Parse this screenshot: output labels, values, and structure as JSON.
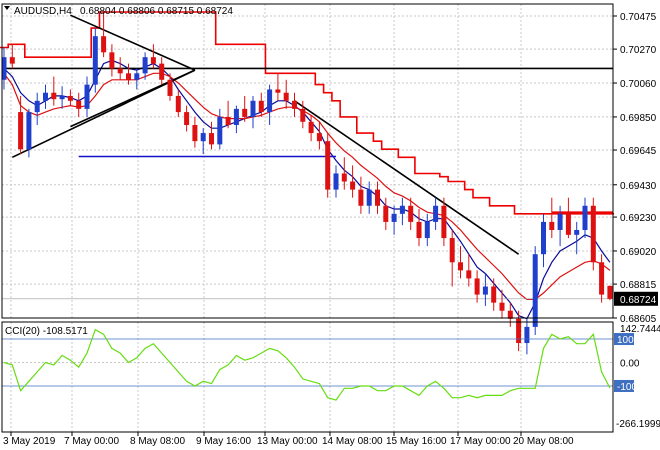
{
  "header": {
    "symbol_label": "AUDUSD,H4",
    "ohlc": "0.68804 0.68806 0.68715 0.68724"
  },
  "indicator": {
    "label": "CCI(20) -108.5171",
    "scale_top": "142.7444",
    "scale_bottom": "-266.1999",
    "level_labels": [
      "100",
      "0.00",
      "-100"
    ]
  },
  "price_axis": {
    "labels": [
      "0.70475",
      "0.70270",
      "0.70060",
      "0.69850",
      "0.69645",
      "0.69430",
      "0.69230",
      "0.69020",
      "0.68815",
      "0.68605"
    ],
    "current_price": "0.68724"
  },
  "time_axis": {
    "labels": [
      "3 May 2019",
      "7 May 00:00",
      "8 May 08:00",
      "9 May 16:00",
      "13 May 00:00",
      "14 May 08:00",
      "15 May 16:00",
      "17 May 00:00",
      "20 May 08:00"
    ]
  },
  "colors": {
    "bull_candle": "#1f3fcc",
    "bear_candle": "#dd1111",
    "cci_line": "#66dd11",
    "upper_band": "#ee0000",
    "fast_ma": "#0a0a99",
    "horizontal_support": "#1111cc",
    "grid": "#c8c8c8",
    "level_line": "#3f6fc0"
  },
  "chart_data": {
    "type": "candlestick",
    "price_range": [
      0.68605,
      0.70475
    ],
    "indicator_range": [
      -266.1999,
      142.7444
    ],
    "candles": [
      [
        0.7008,
        0.7028,
        0.7002,
        0.7022
      ],
      [
        0.7022,
        0.703,
        0.7015,
        0.7018
      ],
      [
        0.6988,
        0.6998,
        0.6962,
        0.6965
      ],
      [
        0.6965,
        0.699,
        0.696,
        0.6988
      ],
      [
        0.6988,
        0.7,
        0.698,
        0.6995
      ],
      [
        0.6995,
        0.7005,
        0.699,
        0.7
      ],
      [
        0.7,
        0.701,
        0.6992,
        0.6996
      ],
      [
        0.6996,
        0.7004,
        0.699,
        0.6998
      ],
      [
        0.6998,
        0.7002,
        0.6992,
        0.6995
      ],
      [
        0.6995,
        0.7,
        0.6985,
        0.699
      ],
      [
        0.699,
        0.701,
        0.6985,
        0.7005
      ],
      [
        0.7005,
        0.704,
        0.7,
        0.7035
      ],
      [
        0.7035,
        0.705,
        0.7022,
        0.7025
      ],
      [
        0.7025,
        0.703,
        0.701,
        0.7015
      ],
      [
        0.7015,
        0.7022,
        0.7008,
        0.7012
      ],
      [
        0.7012,
        0.7018,
        0.7005,
        0.7008
      ],
      [
        0.7008,
        0.7015,
        0.7002,
        0.7012
      ],
      [
        0.7012,
        0.7025,
        0.7008,
        0.7022
      ],
      [
        0.7022,
        0.703,
        0.7015,
        0.7018
      ],
      [
        0.7018,
        0.7022,
        0.7005,
        0.7008
      ],
      [
        0.7008,
        0.7012,
        0.6995,
        0.6998
      ],
      [
        0.6998,
        0.7002,
        0.6985,
        0.6988
      ],
      [
        0.6988,
        0.6992,
        0.6976,
        0.698
      ],
      [
        0.698,
        0.6985,
        0.6966,
        0.697
      ],
      [
        0.697,
        0.6978,
        0.6962,
        0.6975
      ],
      [
        0.6975,
        0.6982,
        0.6965,
        0.6968
      ],
      [
        0.6968,
        0.699,
        0.6965,
        0.6985
      ],
      [
        0.6985,
        0.6995,
        0.6978,
        0.698
      ],
      [
        0.698,
        0.6992,
        0.6975,
        0.699
      ],
      [
        0.699,
        0.6998,
        0.6982,
        0.6985
      ],
      [
        0.6985,
        0.6998,
        0.6978,
        0.6995
      ],
      [
        0.6995,
        0.7,
        0.6985,
        0.6988
      ],
      [
        0.6988,
        0.7005,
        0.698,
        0.7002
      ],
      [
        0.7002,
        0.7012,
        0.6995,
        0.7
      ],
      [
        0.7,
        0.7008,
        0.699,
        0.6995
      ],
      [
        0.6995,
        0.7,
        0.6985,
        0.699
      ],
      [
        0.699,
        0.6995,
        0.6978,
        0.6982
      ],
      [
        0.6982,
        0.6986,
        0.697,
        0.6975
      ],
      [
        0.6975,
        0.6982,
        0.6965,
        0.697
      ],
      [
        0.697,
        0.6975,
        0.6935,
        0.694
      ],
      [
        0.694,
        0.6955,
        0.6935,
        0.695
      ],
      [
        0.695,
        0.696,
        0.694,
        0.6945
      ],
      [
        0.6945,
        0.6955,
        0.6935,
        0.694
      ],
      [
        0.694,
        0.6948,
        0.6925,
        0.693
      ],
      [
        0.693,
        0.6945,
        0.6925,
        0.694
      ],
      [
        0.694,
        0.6945,
        0.6925,
        0.693
      ],
      [
        0.693,
        0.6935,
        0.6915,
        0.692
      ],
      [
        0.692,
        0.693,
        0.6912,
        0.6925
      ],
      [
        0.6925,
        0.6935,
        0.6918,
        0.693
      ],
      [
        0.693,
        0.6935,
        0.6915,
        0.692
      ],
      [
        0.692,
        0.6928,
        0.6905,
        0.691
      ],
      [
        0.691,
        0.6925,
        0.6905,
        0.692
      ],
      [
        0.692,
        0.6935,
        0.6915,
        0.693
      ],
      [
        0.693,
        0.6935,
        0.6905,
        0.691
      ],
      [
        0.691,
        0.6915,
        0.688,
        0.6895
      ],
      [
        0.6895,
        0.6905,
        0.6885,
        0.689
      ],
      [
        0.689,
        0.69,
        0.688,
        0.6885
      ],
      [
        0.6885,
        0.689,
        0.687,
        0.6875
      ],
      [
        0.6875,
        0.6888,
        0.6868,
        0.688
      ],
      [
        0.688,
        0.6885,
        0.6865,
        0.687
      ],
      [
        0.687,
        0.6878,
        0.686,
        0.6865
      ],
      [
        0.6865,
        0.687,
        0.6855,
        0.686
      ],
      [
        0.686,
        0.6865,
        0.684,
        0.6845
      ],
      [
        0.6845,
        0.686,
        0.6838,
        0.6855
      ],
      [
        0.6855,
        0.6905,
        0.685,
        0.69
      ],
      [
        0.69,
        0.6925,
        0.6892,
        0.692
      ],
      [
        0.692,
        0.6935,
        0.691,
        0.6915
      ],
      [
        0.6915,
        0.693,
        0.6905,
        0.6925
      ],
      [
        0.6925,
        0.6935,
        0.691,
        0.6912
      ],
      [
        0.6912,
        0.692,
        0.69,
        0.6915
      ],
      [
        0.6915,
        0.6935,
        0.691,
        0.693
      ],
      [
        0.693,
        0.6935,
        0.689,
        0.6895
      ],
      [
        0.6895,
        0.69,
        0.687,
        0.6875
      ],
      [
        0.68804,
        0.68806,
        0.68715,
        0.68724
      ]
    ],
    "upper_band": [
      0.7028,
      0.703,
      0.703,
      0.7022,
      0.7022,
      0.7022,
      0.7022,
      0.7022,
      0.7022,
      0.7022,
      0.7022,
      0.704,
      0.705,
      0.705,
      0.705,
      0.705,
      0.705,
      0.705,
      0.705,
      0.705,
      0.705,
      0.705,
      0.705,
      0.705,
      0.705,
      0.705,
      0.703,
      0.703,
      0.703,
      0.703,
      0.703,
      0.703,
      0.7012,
      0.7012,
      0.7012,
      0.7012,
      0.7012,
      0.7012,
      0.7005,
      0.7,
      0.6995,
      0.6985,
      0.6985,
      0.6975,
      0.6975,
      0.697,
      0.6965,
      0.6965,
      0.696,
      0.696,
      0.695,
      0.695,
      0.695,
      0.6948,
      0.6945,
      0.6945,
      0.694,
      0.6935,
      0.6935,
      0.693,
      0.693,
      0.693,
      0.6925,
      0.6925,
      0.6925,
      0.6925,
      0.6925,
      0.6925,
      0.6925,
      0.6925,
      0.6925,
      0.6925,
      0.6925,
      0.6925
    ],
    "fast_ma": [
      0.7015,
      0.701,
      0.7,
      0.6995,
      0.6992,
      0.6995,
      0.6998,
      0.6998,
      0.6997,
      0.6995,
      0.6998,
      0.7008,
      0.7018,
      0.702,
      0.7018,
      0.7015,
      0.7014,
      0.7016,
      0.7018,
      0.7015,
      0.701,
      0.7002,
      0.6995,
      0.6988,
      0.6982,
      0.6978,
      0.6978,
      0.698,
      0.6982,
      0.6984,
      0.6986,
      0.6988,
      0.6992,
      0.6995,
      0.6995,
      0.6992,
      0.6988,
      0.6982,
      0.6976,
      0.6965,
      0.6958,
      0.6952,
      0.6948,
      0.6942,
      0.694,
      0.6936,
      0.693,
      0.6928,
      0.6928,
      0.6926,
      0.6922,
      0.692,
      0.6922,
      0.6922,
      0.6915,
      0.6908,
      0.69,
      0.6892,
      0.6888,
      0.6882,
      0.6876,
      0.687,
      0.6862,
      0.686,
      0.687,
      0.6885,
      0.6895,
      0.6902,
      0.6905,
      0.6908,
      0.6912,
      0.691,
      0.6902,
      0.6895
    ],
    "slow_ma": [
      0.7012,
      0.7005,
      0.6992,
      0.6988,
      0.6986,
      0.6988,
      0.699,
      0.6991,
      0.6992,
      0.6991,
      0.6992,
      0.6998,
      0.7005,
      0.7008,
      0.7008,
      0.7008,
      0.7008,
      0.701,
      0.7012,
      0.7012,
      0.701,
      0.7006,
      0.7001,
      0.6996,
      0.6991,
      0.6987,
      0.6985,
      0.6984,
      0.6984,
      0.6984,
      0.6985,
      0.6986,
      0.6988,
      0.699,
      0.6991,
      0.6991,
      0.6989,
      0.6986,
      0.6982,
      0.6975,
      0.6969,
      0.6964,
      0.696,
      0.6955,
      0.6951,
      0.6947,
      0.6942,
      0.6938,
      0.6936,
      0.6933,
      0.6929,
      0.6926,
      0.6925,
      0.6924,
      0.692,
      0.6915,
      0.6909,
      0.6903,
      0.6898,
      0.6893,
      0.6888,
      0.6882,
      0.6876,
      0.6872,
      0.6872,
      0.6876,
      0.6881,
      0.6886,
      0.6889,
      0.6892,
      0.6895,
      0.6896,
      0.6894,
      0.689
    ],
    "cci": [
      0,
      -10,
      -120,
      -80,
      -40,
      0,
      -10,
      30,
      10,
      -20,
      40,
      140,
      120,
      60,
      40,
      0,
      20,
      60,
      80,
      40,
      0,
      -40,
      -80,
      -100,
      -80,
      -90,
      -30,
      -10,
      30,
      10,
      20,
      40,
      60,
      50,
      20,
      -20,
      -70,
      -80,
      -90,
      -150,
      -160,
      -110,
      -110,
      -100,
      -100,
      -120,
      -120,
      -100,
      -100,
      -120,
      -140,
      -100,
      -80,
      -110,
      -150,
      -150,
      -140,
      -150,
      -140,
      -140,
      -140,
      -120,
      -110,
      -110,
      -110,
      60,
      120,
      100,
      110,
      80,
      80,
      120,
      -40,
      -108.5171
    ],
    "trend_lines": [
      {
        "from": [
          1,
          0.696
        ],
        "to": [
          23,
          0.7014
        ]
      },
      {
        "from": [
          8,
          0.6979
        ],
        "to": [
          23,
          0.7014
        ]
      },
      {
        "from": [
          8,
          0.7048
        ],
        "to": [
          23,
          0.7014
        ]
      },
      {
        "from": [
          35,
          0.6995
        ],
        "to": [
          62,
          0.69
        ]
      }
    ],
    "horizontal_lines": [
      {
        "kind": "resistance",
        "price": 0.7015,
        "from": 0,
        "to": 73
      },
      {
        "kind": "support",
        "price": 0.69605,
        "from": 9,
        "to": 40
      },
      {
        "kind": "resistance",
        "price": 0.6926,
        "from": 66,
        "to": 73
      }
    ]
  }
}
